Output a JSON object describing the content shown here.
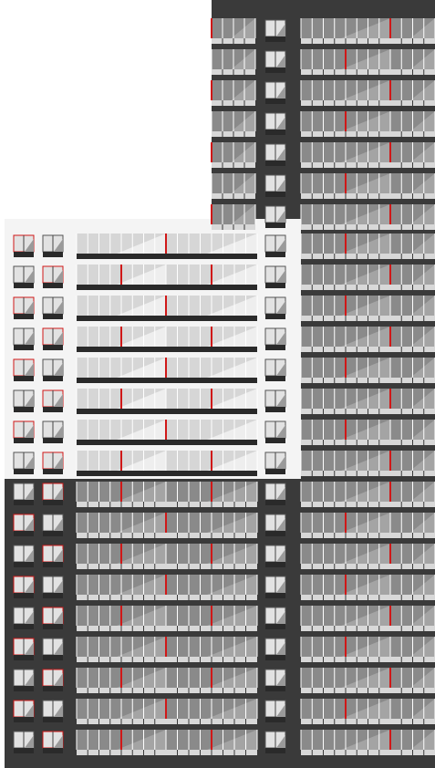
{
  "building": {
    "colors": {
      "background": "#ffffff",
      "dark_cladding": "#3a3a3a",
      "light_cladding": "#f4f4f4",
      "glass_dark": "#8a8a8a",
      "glass_light": "#d6d6d6",
      "mullion": "#ffffff",
      "spandrel_dark": "#2a2a2a",
      "accent_red": "#d01818"
    },
    "tower_floors": 7,
    "light_band_floors": 8,
    "lower_band_floors": 9
  }
}
